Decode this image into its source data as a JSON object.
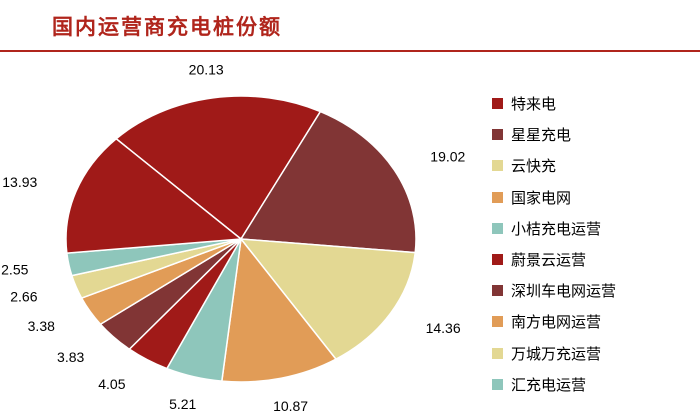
{
  "header": {
    "title": "国内运营商充电桩份额"
  },
  "chart_data": {
    "type": "pie",
    "title": "国内运营商充电桩份额",
    "legend_position": "right",
    "slices": [
      {
        "label": "特来电",
        "value": 20.13,
        "color": "#a01a18"
      },
      {
        "label": "星星充电",
        "value": 19.02,
        "color": "#813535"
      },
      {
        "label": "云快充",
        "value": 14.36,
        "color": "#e3d893"
      },
      {
        "label": "国家电网",
        "value": 10.87,
        "color": "#e19c57"
      },
      {
        "label": "小桔充电运营",
        "value": 5.21,
        "color": "#8ec6bb"
      },
      {
        "label": "蔚景云运营",
        "value": 4.05,
        "color": "#a01a18"
      },
      {
        "label": "深圳车电网运营",
        "value": 3.83,
        "color": "#813535"
      },
      {
        "label": "南方电网运营",
        "value": 3.38,
        "color": "#e19c57"
      },
      {
        "label": "万城万充运营",
        "value": 2.66,
        "color": "#e3d893"
      },
      {
        "label": "汇充电运营",
        "value": 2.55,
        "color": "#8ec6bb"
      },
      {
        "label": "",
        "value": 13.93,
        "color": "#a01a18"
      }
    ]
  }
}
